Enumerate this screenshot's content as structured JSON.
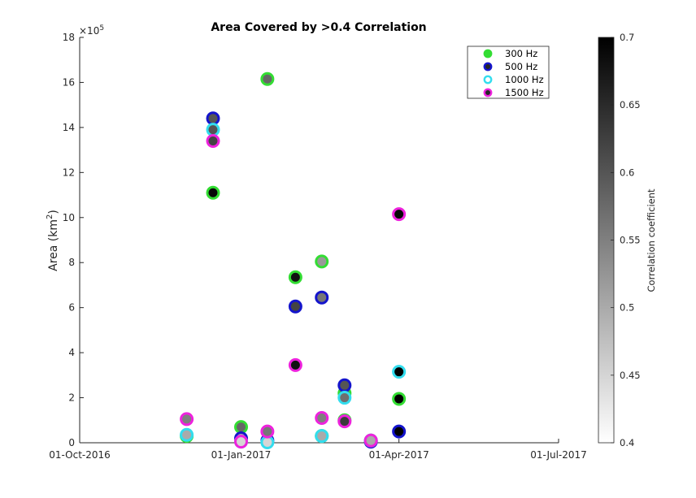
{
  "chart_data": {
    "type": "scatter",
    "title": "Area Covered by >0.4 Correlation",
    "ylabel": "Area (km",
    "ylabel_sup": "2",
    "ylabel_close": ")",
    "y_exponent_base": "×10",
    "y_exponent": "5",
    "xlim": [
      "2016-10-01",
      "2017-07-01"
    ],
    "ylim": [
      0,
      18
    ],
    "x_ticks": [
      "01-Oct-2016",
      "01-Jan-2017",
      "01-Apr-2017",
      "01-Jul-2017"
    ],
    "y_ticks": [
      "0",
      "2",
      "4",
      "6",
      "8",
      "10",
      "12",
      "14",
      "16",
      "18"
    ],
    "legend_position": "top-right",
    "colorbar": {
      "label": "Correlation coefficient",
      "range": [
        0.4,
        0.7
      ],
      "ticks": [
        "0.4",
        "0.45",
        "0.5",
        "0.55",
        "0.6",
        "0.65",
        "0.7"
      ]
    },
    "series": [
      {
        "name": "300 Hz",
        "edge_color": "#33dd33",
        "points": [
          {
            "x": "2016-12-01",
            "y": 0.3,
            "c": 0.5
          },
          {
            "x": "2016-12-16",
            "y": 11.1,
            "c": 0.69
          },
          {
            "x": "2017-01-01",
            "y": 0.7,
            "c": 0.58
          },
          {
            "x": "2017-01-16",
            "y": 16.15,
            "c": 0.58
          },
          {
            "x": "2017-02-01",
            "y": 7.35,
            "c": 0.68
          },
          {
            "x": "2017-02-16",
            "y": 8.05,
            "c": 0.52
          },
          {
            "x": "2017-02-16",
            "y": 0.3,
            "c": 0.5
          },
          {
            "x": "2017-03-01",
            "y": 2.2,
            "c": 0.6
          },
          {
            "x": "2017-03-01",
            "y": 1.0,
            "c": 0.62
          },
          {
            "x": "2017-03-16",
            "y": 0.1,
            "c": 0.5
          },
          {
            "x": "2017-04-01",
            "y": 1.95,
            "c": 0.7
          }
        ]
      },
      {
        "name": "500 Hz",
        "edge_color": "#1414cc",
        "points": [
          {
            "x": "2016-12-16",
            "y": 14.4,
            "c": 0.6
          },
          {
            "x": "2017-01-01",
            "y": 0.2,
            "c": 0.5
          },
          {
            "x": "2017-01-16",
            "y": 0.1,
            "c": 0.55
          },
          {
            "x": "2017-02-01",
            "y": 6.05,
            "c": 0.62
          },
          {
            "x": "2017-02-16",
            "y": 6.45,
            "c": 0.56
          },
          {
            "x": "2017-03-01",
            "y": 2.55,
            "c": 0.6
          },
          {
            "x": "2017-03-16",
            "y": 0.05,
            "c": 0.48
          },
          {
            "x": "2017-04-01",
            "y": 0.5,
            "c": 0.7
          }
        ]
      },
      {
        "name": "1000 Hz",
        "edge_color": "#33ddee",
        "points": [
          {
            "x": "2016-12-01",
            "y": 0.35,
            "c": 0.5
          },
          {
            "x": "2016-12-16",
            "y": 13.9,
            "c": 0.6
          },
          {
            "x": "2017-01-01",
            "y": 0.05,
            "c": 0.48
          },
          {
            "x": "2017-01-16",
            "y": 0.02,
            "c": 0.45
          },
          {
            "x": "2017-02-16",
            "y": 0.3,
            "c": 0.5
          },
          {
            "x": "2017-03-01",
            "y": 2.0,
            "c": 0.57
          },
          {
            "x": "2017-03-16",
            "y": 0.1,
            "c": 0.5
          },
          {
            "x": "2017-04-01",
            "y": 3.15,
            "c": 0.7
          }
        ]
      },
      {
        "name": "1500 Hz",
        "edge_color": "#ee22dd",
        "points": [
          {
            "x": "2016-12-01",
            "y": 1.05,
            "c": 0.55
          },
          {
            "x": "2016-12-16",
            "y": 13.4,
            "c": 0.62
          },
          {
            "x": "2017-01-01",
            "y": 0.05,
            "c": 0.45
          },
          {
            "x": "2017-01-16",
            "y": 0.5,
            "c": 0.56
          },
          {
            "x": "2017-02-01",
            "y": 3.45,
            "c": 0.68
          },
          {
            "x": "2017-02-16",
            "y": 1.1,
            "c": 0.55
          },
          {
            "x": "2017-03-01",
            "y": 0.95,
            "c": 0.63
          },
          {
            "x": "2017-03-16",
            "y": 0.1,
            "c": 0.5
          },
          {
            "x": "2017-04-01",
            "y": 10.15,
            "c": 0.69
          }
        ]
      }
    ]
  }
}
